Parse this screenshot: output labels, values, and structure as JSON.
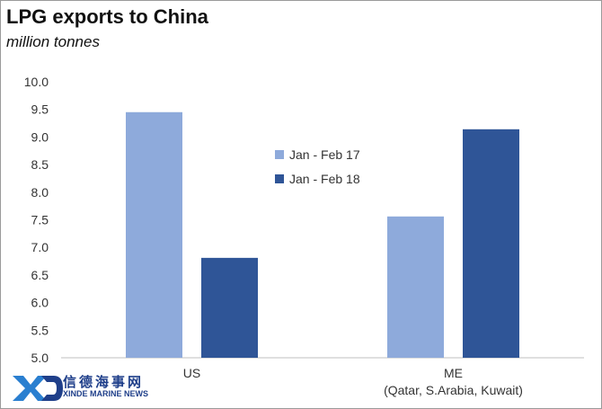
{
  "title": "LPG exports to China",
  "subtitle": "million tonnes",
  "logo": {
    "mark": "XD",
    "cn": "信德海事网",
    "en": "XINDE MARINE NEWS"
  },
  "chart_data": {
    "type": "bar",
    "categories": [
      "US",
      "ME"
    ],
    "category_sublabels": [
      "",
      "(Qatar, S.Arabia, Kuwait)"
    ],
    "series": [
      {
        "name": "Jan - Feb 17",
        "values": [
          9.45,
          7.56
        ],
        "color": "#8eaadb"
      },
      {
        "name": "Jan - Feb 18",
        "values": [
          6.81,
          9.14
        ],
        "color": "#2f5597"
      }
    ],
    "yticks": [
      "5.0",
      "5.5",
      "6.0",
      "6.5",
      "7.0",
      "7.5",
      "8.0",
      "8.5",
      "9.0",
      "9.5",
      "10.0"
    ],
    "ylim": [
      5.0,
      10.0
    ],
    "grid": false,
    "legend_position": "center"
  }
}
